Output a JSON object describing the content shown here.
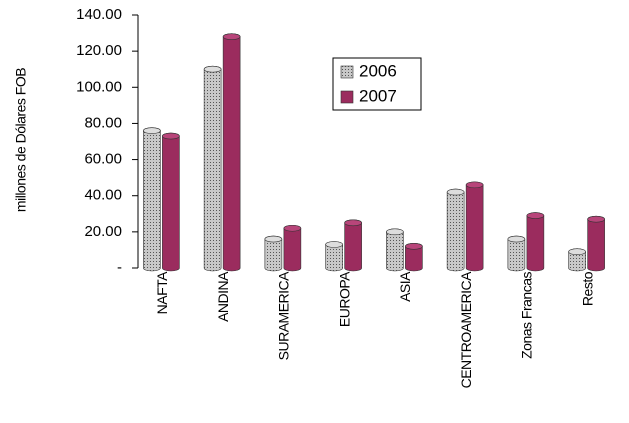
{
  "chart_data": {
    "type": "bar3d",
    "y_label": "millones de Dólares FOB",
    "categories": [
      "NAFTA",
      "ANDINA",
      "SURAMERICA",
      "EUROPA",
      "ASIA",
      "CENTROAMERICA",
      "Zonas Francas",
      "Resto"
    ],
    "series": [
      {
        "name": "2006",
        "color": "#bdbdbd",
        "values": [
          76,
          110,
          16,
          13,
          20,
          42,
          16,
          9
        ]
      },
      {
        "name": "2007",
        "color": "#9b2c5e",
        "values": [
          73,
          128,
          22,
          25,
          12,
          46,
          29,
          27
        ]
      }
    ],
    "ylim": [
      0,
      140
    ],
    "yticks": [
      {
        "value": 0,
        "label": "-"
      },
      {
        "value": 20,
        "label": "20.00"
      },
      {
        "value": 40,
        "label": "40.00"
      },
      {
        "value": 60,
        "label": "60.00"
      },
      {
        "value": 80,
        "label": "80.00"
      },
      {
        "value": 100,
        "label": "100.00"
      },
      {
        "value": 120,
        "label": "120.00"
      },
      {
        "value": 140,
        "label": "140.00"
      }
    ],
    "legend": "upper right"
  }
}
